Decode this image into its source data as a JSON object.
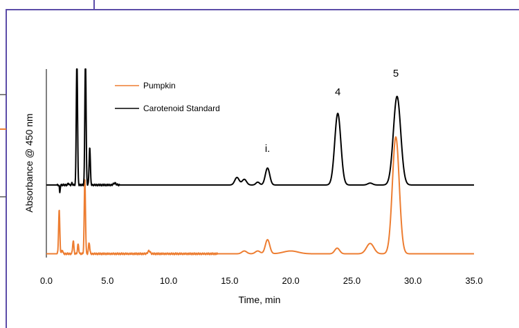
{
  "frame": {
    "border_color": "#5b4ca8"
  },
  "chart_data": {
    "type": "line",
    "title": "",
    "xlabel": "Time, min",
    "ylabel": "Absorbance @ 450 nm",
    "xlim": [
      0,
      35
    ],
    "ylim": [
      0,
      1.0
    ],
    "xticks": [
      "0.0",
      "5.0",
      "10.0",
      "15.0",
      "20.0",
      "25.0",
      "30.0",
      "35.0"
    ],
    "grid": false,
    "legend_position": "top-left",
    "series": [
      {
        "name": "Pumpkin",
        "color": "#ed7d31",
        "baseline": 0.02,
        "noise_end": 14,
        "peaks": [
          {
            "x": 1.05,
            "h": 0.23,
            "w": 0.05
          },
          {
            "x": 1.3,
            "h": 0.02,
            "w": 0.05
          },
          {
            "x": 2.2,
            "h": 0.07,
            "w": 0.05
          },
          {
            "x": 2.6,
            "h": 0.05,
            "w": 0.05
          },
          {
            "x": 3.15,
            "h": 0.4,
            "w": 0.05
          },
          {
            "x": 3.5,
            "h": 0.06,
            "w": 0.05
          },
          {
            "x": 8.4,
            "h": 0.015,
            "w": 0.1
          },
          {
            "x": 16.2,
            "h": 0.015,
            "w": 0.2
          },
          {
            "x": 17.3,
            "h": 0.015,
            "w": 0.2
          },
          {
            "x": 18.1,
            "h": 0.075,
            "w": 0.18
          },
          {
            "x": 20.0,
            "h": 0.015,
            "w": 0.6
          },
          {
            "x": 23.8,
            "h": 0.03,
            "w": 0.2
          },
          {
            "x": 26.5,
            "h": 0.055,
            "w": 0.3
          },
          {
            "x": 28.6,
            "h": 0.62,
            "w": 0.28
          }
        ]
      },
      {
        "name": "Carotenoid Standard",
        "color": "#000000",
        "baseline": 0.385,
        "noise_end": 6,
        "peaks": [
          {
            "x": 1.1,
            "h": -0.04,
            "w": 0.03
          },
          {
            "x": 1.8,
            "h": 0.01,
            "w": 0.04
          },
          {
            "x": 2.1,
            "h": 0.01,
            "w": 0.04
          },
          {
            "x": 2.5,
            "h": 0.7,
            "w": 0.05
          },
          {
            "x": 3.2,
            "h": 0.7,
            "w": 0.05
          },
          {
            "x": 3.55,
            "h": 0.2,
            "w": 0.05
          },
          {
            "x": 5.6,
            "h": 0.01,
            "w": 0.1
          },
          {
            "x": 15.6,
            "h": 0.04,
            "w": 0.18
          },
          {
            "x": 16.2,
            "h": 0.03,
            "w": 0.18
          },
          {
            "x": 17.3,
            "h": 0.015,
            "w": 0.15
          },
          {
            "x": 18.1,
            "h": 0.09,
            "w": 0.18
          },
          {
            "x": 23.85,
            "h": 0.38,
            "w": 0.25
          },
          {
            "x": 26.5,
            "h": 0.01,
            "w": 0.2
          },
          {
            "x": 28.7,
            "h": 0.47,
            "w": 0.3
          }
        ]
      }
    ],
    "annotations": [
      {
        "text": "i.",
        "x": 18.1,
        "y": 0.56
      },
      {
        "text": "4",
        "x": 23.85,
        "y": 0.86
      },
      {
        "text": "5",
        "x": 28.6,
        "y": 0.96
      }
    ]
  }
}
